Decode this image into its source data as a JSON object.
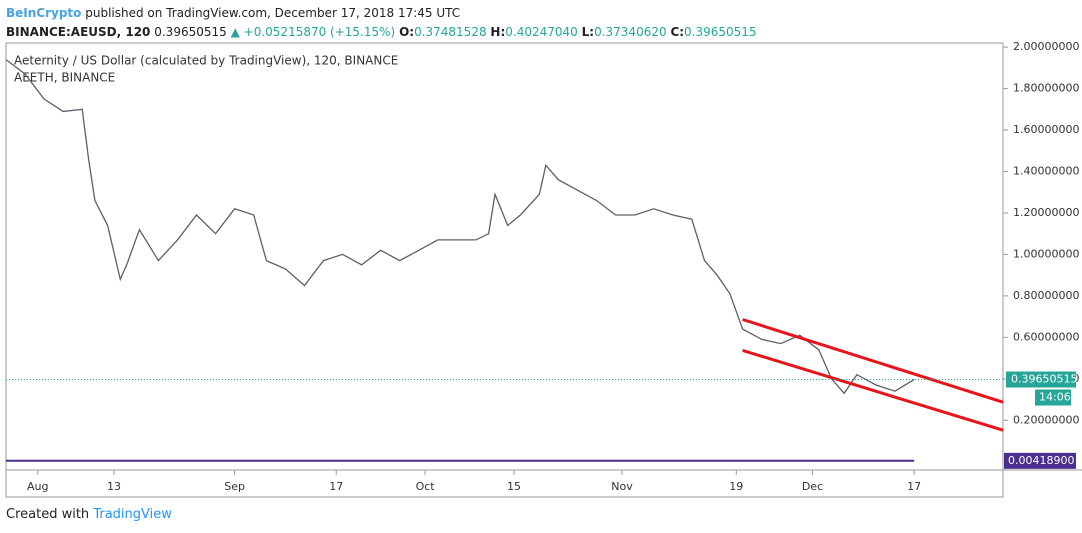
{
  "header": {
    "author": "BeInCrypto",
    "published": "published on TradingView.com, December 17, 2018 17:45 UTC",
    "symbol": "BINANCE:AEUSD, 120",
    "price": "0.39650515",
    "arrow": "▲",
    "change": "+0.05215870 (+15.15%)",
    "open_label": "O:",
    "open": "0.37481528",
    "high_label": "H:",
    "high": "0.40247040",
    "low_label": "L:",
    "low": "0.37340620",
    "close_label": "C:",
    "close": "0.39650515"
  },
  "footer": {
    "created": "Created with",
    "brand": "TradingView"
  },
  "chart_data": {
    "type": "line",
    "legend_title": "Aeternity / US Dollar (calculated by TradingView), 120, BINANCE",
    "legend_subtitle": "AEETH, BINANCE",
    "x": [
      "Jul 27",
      "Jul 30",
      "Aug 2",
      "Aug 5",
      "Aug 8",
      "Aug 9",
      "Aug 10",
      "Aug 12",
      "Aug 14",
      "Aug 15",
      "Aug 17",
      "Aug 20",
      "Aug 23",
      "Aug 26",
      "Aug 29",
      "Sep 1",
      "Sep 4",
      "Sep 6",
      "Sep 9",
      "Sep 12",
      "Sep 15",
      "Sep 18",
      "Sep 21",
      "Sep 24",
      "Sep 27",
      "Sep 30",
      "Oct 3",
      "Oct 6",
      "Oct 9",
      "Oct 11",
      "Oct 12",
      "Oct 14",
      "Oct 16",
      "Oct 19",
      "Oct 20",
      "Oct 22",
      "Oct 25",
      "Oct 28",
      "Oct 31",
      "Nov 3",
      "Nov 6",
      "Nov 9",
      "Nov 12",
      "Nov 14",
      "Nov 16",
      "Nov 18",
      "Nov 20",
      "Nov 23",
      "Nov 26",
      "Nov 29",
      "Dec 2",
      "Dec 4",
      "Dec 6",
      "Dec 8",
      "Dec 11",
      "Dec 14",
      "Dec 17"
    ],
    "series": [
      {
        "name": "AEUSD",
        "color": "#5d606b",
        "values": [
          1.94,
          1.87,
          1.75,
          1.69,
          1.7,
          1.46,
          1.26,
          1.14,
          0.88,
          0.95,
          1.12,
          0.97,
          1.07,
          1.19,
          1.1,
          1.22,
          1.19,
          0.97,
          0.93,
          0.85,
          0.97,
          1.0,
          0.95,
          1.02,
          0.97,
          1.02,
          1.07,
          1.07,
          1.07,
          1.1,
          1.29,
          1.14,
          1.19,
          1.29,
          1.43,
          1.36,
          1.31,
          1.26,
          1.19,
          1.19,
          1.22,
          1.19,
          1.17,
          0.97,
          0.9,
          0.81,
          0.64,
          0.59,
          0.57,
          0.61,
          0.54,
          0.4,
          0.33,
          0.42,
          0.37,
          0.34,
          0.39650515
        ]
      }
    ],
    "indicator": {
      "color": "#4a2f8f",
      "x": [
        "Jul 27",
        "Dec 17"
      ],
      "values": [
        0.004189,
        0.004189
      ],
      "value_label": "0.00418900"
    },
    "trend_lines": [
      {
        "color": "#e8141c",
        "x": [
          "Nov 20",
          "Dec 31"
        ],
        "values": [
          0.686,
          0.287
        ]
      },
      {
        "color": "#e8141c",
        "x": [
          "Nov 20",
          "Dec 31"
        ],
        "values": [
          0.537,
          0.152
        ]
      }
    ],
    "last_price": {
      "value": 0.39650515,
      "label": "0.39650515",
      "countdown": "14:06",
      "color": "#26a69a"
    },
    "xlim": [
      "Jul 27",
      "Dec 31"
    ],
    "ylim": [
      -0.04,
      2.02
    ],
    "xticks": [
      {
        "value": "Aug 1",
        "label": "Aug"
      },
      {
        "value": "Aug 13",
        "label": "13"
      },
      {
        "value": "Sep 1",
        "label": "Sep"
      },
      {
        "value": "Sep 17",
        "label": "17"
      },
      {
        "value": "Oct 1",
        "label": "Oct"
      },
      {
        "value": "Oct 15",
        "label": "15"
      },
      {
        "value": "Nov 1",
        "label": "Nov"
      },
      {
        "value": "Nov 19",
        "label": "19"
      },
      {
        "value": "Dec 1",
        "label": "Dec"
      },
      {
        "value": "Dec 17",
        "label": "17"
      }
    ],
    "yticks": [
      {
        "value": 0.2,
        "label": "0.20000000"
      },
      {
        "value": 0.4,
        "label": "0.40000000"
      },
      {
        "value": 0.6,
        "label": "0.60000000"
      },
      {
        "value": 0.8,
        "label": "0.80000000"
      },
      {
        "value": 1.0,
        "label": "1.00000000"
      },
      {
        "value": 1.2,
        "label": "1.20000000"
      },
      {
        "value": 1.4,
        "label": "1.40000000"
      },
      {
        "value": 1.6,
        "label": "1.60000000"
      },
      {
        "value": 1.8,
        "label": "1.80000000"
      },
      {
        "value": 2.0,
        "label": "2.00000000"
      }
    ]
  }
}
